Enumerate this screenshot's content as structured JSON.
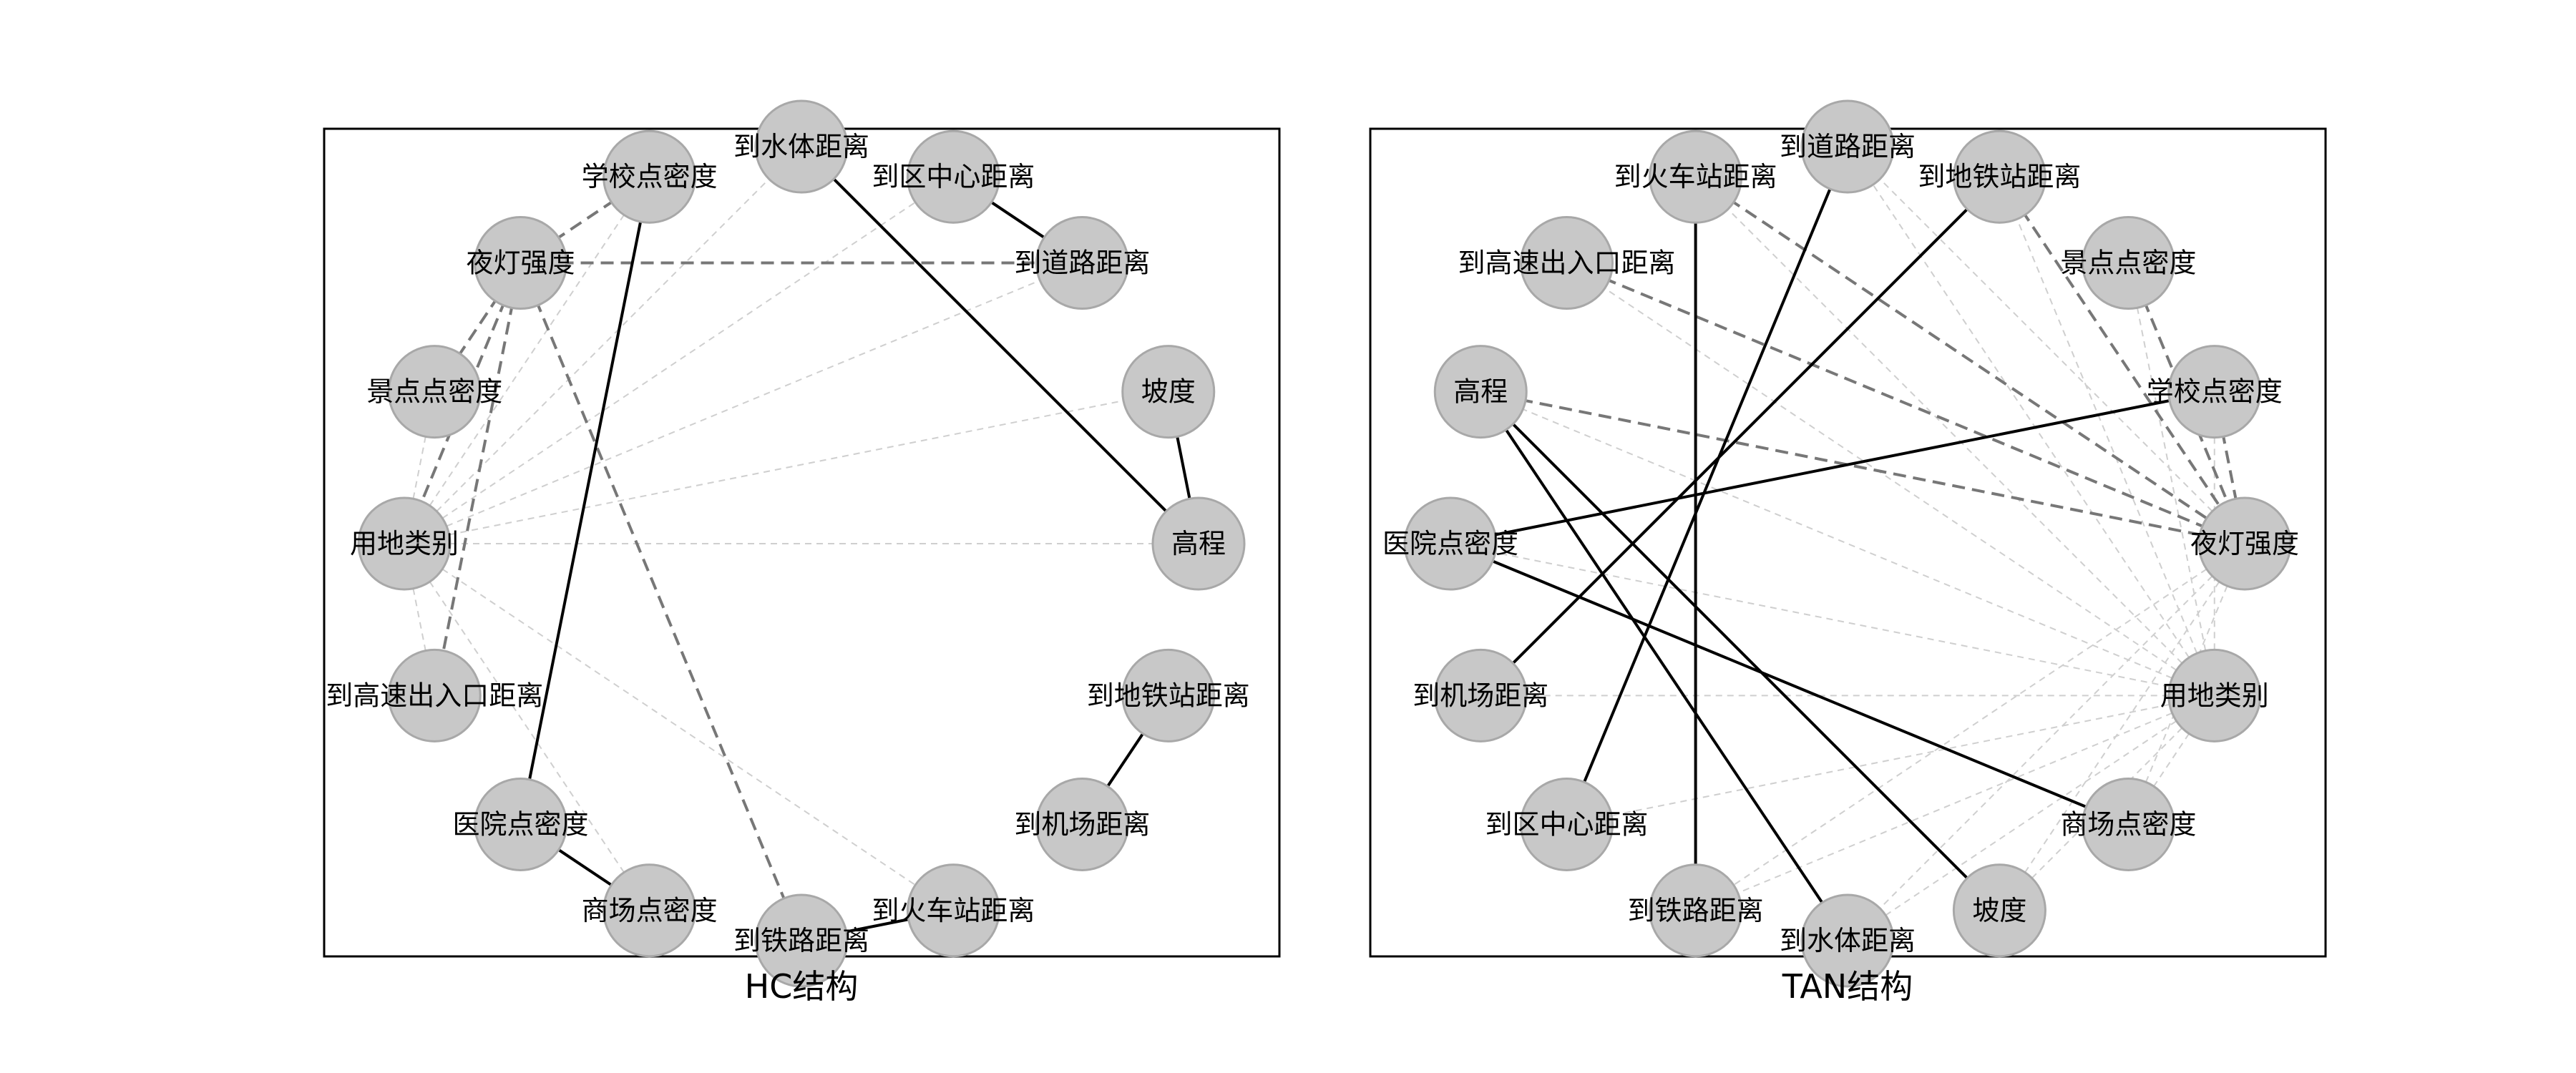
{
  "panels": [
    {
      "id": "hc",
      "caption": "HC结构",
      "nodes": [
        "到水体距离",
        "到区中心距离",
        "到道路距离",
        "坡度",
        "高程",
        "到地铁站距离",
        "到机场距离",
        "到火车站距离",
        "到铁路距离",
        "商场点密度",
        "医院点密度",
        "到高速出入口距离",
        "用地类别",
        "景点点密度",
        "夜灯强度",
        "学校点密度"
      ],
      "edges": [
        {
          "from": "到水体距离",
          "to": "高程",
          "style": "solid"
        },
        {
          "from": "到区中心距离",
          "to": "到道路距离",
          "style": "solid"
        },
        {
          "from": "坡度",
          "to": "高程",
          "style": "solid"
        },
        {
          "from": "到地铁站距离",
          "to": "到机场距离",
          "style": "solid"
        },
        {
          "from": "到火车站距离",
          "to": "到铁路距离",
          "style": "solid"
        },
        {
          "from": "学校点密度",
          "to": "医院点密度",
          "style": "solid"
        },
        {
          "from": "医院点密度",
          "to": "商场点密度",
          "style": "solid"
        },
        {
          "from": "夜灯强度",
          "to": "到道路距离",
          "style": "dashed"
        },
        {
          "from": "夜灯强度",
          "to": "学校点密度",
          "style": "dashed"
        },
        {
          "from": "夜灯强度",
          "to": "景点点密度",
          "style": "dashed"
        },
        {
          "from": "夜灯强度",
          "to": "用地类别",
          "style": "dashed"
        },
        {
          "from": "夜灯强度",
          "to": "到高速出入口距离",
          "style": "dashed"
        },
        {
          "from": "夜灯强度",
          "to": "到铁路距离",
          "style": "dashed"
        },
        {
          "from": "用地类别",
          "to": "学校点密度",
          "style": "faint"
        },
        {
          "from": "用地类别",
          "to": "到水体距离",
          "style": "faint"
        },
        {
          "from": "用地类别",
          "to": "到区中心距离",
          "style": "faint"
        },
        {
          "from": "用地类别",
          "to": "到道路距离",
          "style": "faint"
        },
        {
          "from": "用地类别",
          "to": "坡度",
          "style": "faint"
        },
        {
          "from": "用地类别",
          "to": "高程",
          "style": "faint"
        },
        {
          "from": "用地类别",
          "to": "到火车站距离",
          "style": "faint"
        },
        {
          "from": "用地类别",
          "to": "商场点密度",
          "style": "faint"
        },
        {
          "from": "用地类别",
          "to": "景点点密度",
          "style": "faint"
        },
        {
          "from": "用地类别",
          "to": "到高速出入口距离",
          "style": "faint"
        }
      ]
    },
    {
      "id": "tan",
      "caption": "TAN结构",
      "nodes": [
        "到道路距离",
        "到地铁站距离",
        "景点点密度",
        "学校点密度",
        "夜灯强度",
        "用地类别",
        "商场点密度",
        "坡度",
        "到水体距离",
        "到铁路距离",
        "到区中心距离",
        "到机场距离",
        "医院点密度",
        "高程",
        "到高速出入口距离",
        "到火车站距离"
      ],
      "edges": [
        {
          "from": "到火车站距离",
          "to": "到铁路距离",
          "style": "solid"
        },
        {
          "from": "到道路距离",
          "to": "到区中心距离",
          "style": "solid"
        },
        {
          "from": "到地铁站距离",
          "to": "到机场距离",
          "style": "solid"
        },
        {
          "from": "学校点密度",
          "to": "医院点密度",
          "style": "solid"
        },
        {
          "from": "医院点密度",
          "to": "商场点密度",
          "style": "solid"
        },
        {
          "from": "高程",
          "to": "坡度",
          "style": "solid"
        },
        {
          "from": "高程",
          "to": "到水体距离",
          "style": "solid"
        },
        {
          "from": "到火车站距离",
          "to": "夜灯强度",
          "style": "dashed"
        },
        {
          "from": "到高速出入口距离",
          "to": "夜灯强度",
          "style": "dashed"
        },
        {
          "from": "到地铁站距离",
          "to": "夜灯强度",
          "style": "dashed"
        },
        {
          "from": "景点点密度",
          "to": "夜灯强度",
          "style": "dashed"
        },
        {
          "from": "学校点密度",
          "to": "夜灯强度",
          "style": "dashed"
        },
        {
          "from": "高程",
          "to": "夜灯强度",
          "style": "dashed"
        },
        {
          "from": "用地类别",
          "to": "到火车站距离",
          "style": "faint"
        },
        {
          "from": "用地类别",
          "to": "到道路距离",
          "style": "faint"
        },
        {
          "from": "用地类别",
          "to": "到地铁站距离",
          "style": "faint"
        },
        {
          "from": "用地类别",
          "to": "景点点密度",
          "style": "faint"
        },
        {
          "from": "用地类别",
          "to": "学校点密度",
          "style": "faint"
        },
        {
          "from": "用地类别",
          "to": "到高速出入口距离",
          "style": "faint"
        },
        {
          "from": "用地类别",
          "to": "高程",
          "style": "faint"
        },
        {
          "from": "用地类别",
          "to": "医院点密度",
          "style": "faint"
        },
        {
          "from": "用地类别",
          "to": "到机场距离",
          "style": "faint"
        },
        {
          "from": "用地类别",
          "to": "到区中心距离",
          "style": "faint"
        },
        {
          "from": "用地类别",
          "to": "到铁路距离",
          "style": "faint"
        },
        {
          "from": "用地类别",
          "to": "到水体距离",
          "style": "faint"
        },
        {
          "from": "用地类别",
          "to": "坡度",
          "style": "faint"
        },
        {
          "from": "用地类别",
          "to": "商场点密度",
          "style": "faint"
        },
        {
          "from": "夜灯强度",
          "to": "到道路距离",
          "style": "faint"
        },
        {
          "from": "夜灯强度",
          "to": "到铁路距离",
          "style": "faint"
        },
        {
          "from": "夜灯强度",
          "to": "到水体距离",
          "style": "faint"
        },
        {
          "from": "夜灯强度",
          "to": "坡度",
          "style": "faint"
        },
        {
          "from": "夜灯强度",
          "to": "商场点密度",
          "style": "faint"
        }
      ]
    }
  ]
}
